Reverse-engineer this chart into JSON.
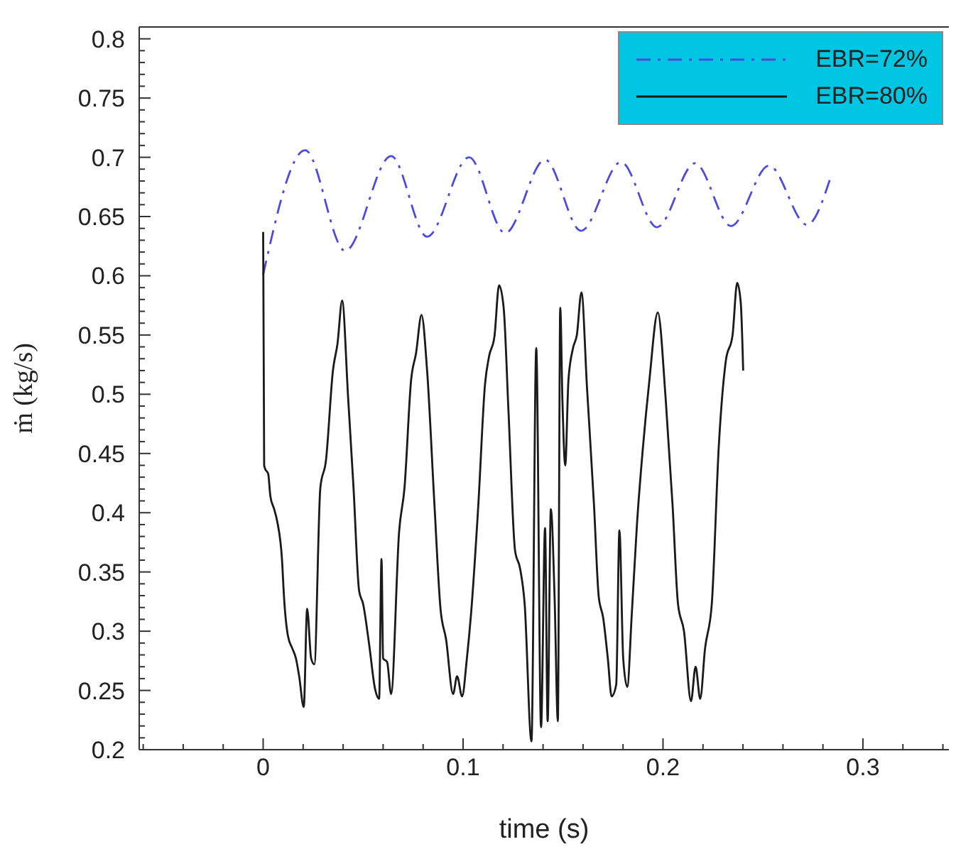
{
  "chart_data": {
    "type": "line",
    "xlabel": "time (s)",
    "ylabel": "ṁ (kg/s)",
    "legend": "top right",
    "grid": false,
    "marker": "none",
    "xlim": [
      -0.062,
      0.343
    ],
    "ylim": [
      0.2,
      0.81
    ],
    "xticks": [
      {
        "value": -0.06,
        "label": null
      },
      {
        "value": -0.04,
        "label": null
      },
      {
        "value": -0.02,
        "label": null
      },
      0,
      {
        "value": 0.02,
        "label": null
      },
      {
        "value": 0.04,
        "label": null
      },
      {
        "value": 0.06,
        "label": null
      },
      {
        "value": 0.08,
        "label": null
      },
      0.1,
      {
        "value": 0.12,
        "label": null
      },
      {
        "value": 0.14,
        "label": null
      },
      {
        "value": 0.16,
        "label": null
      },
      {
        "value": 0.18,
        "label": null
      },
      0.2,
      {
        "value": 0.22,
        "label": null
      },
      {
        "value": 0.24,
        "label": null
      },
      {
        "value": 0.26,
        "label": null
      },
      {
        "value": 0.28,
        "label": null
      },
      0.3,
      {
        "value": 0.32,
        "label": null
      },
      {
        "value": 0.34,
        "label": null
      }
    ],
    "yticks": [
      0.2,
      {
        "value": 0.21,
        "label": null
      },
      {
        "value": 0.22,
        "label": null
      },
      {
        "value": 0.23,
        "label": null
      },
      {
        "value": 0.24,
        "label": null
      },
      0.25,
      {
        "value": 0.26,
        "label": null
      },
      {
        "value": 0.27,
        "label": null
      },
      {
        "value": 0.28,
        "label": null
      },
      {
        "value": 0.29,
        "label": null
      },
      0.3,
      {
        "value": 0.31,
        "label": null
      },
      {
        "value": 0.32,
        "label": null
      },
      {
        "value": 0.33,
        "label": null
      },
      {
        "value": 0.34,
        "label": null
      },
      0.35,
      {
        "value": 0.36,
        "label": null
      },
      {
        "value": 0.37,
        "label": null
      },
      {
        "value": 0.38,
        "label": null
      },
      {
        "value": 0.39,
        "label": null
      },
      0.4,
      {
        "value": 0.41,
        "label": null
      },
      {
        "value": 0.42,
        "label": null
      },
      {
        "value": 0.43,
        "label": null
      },
      {
        "value": 0.44,
        "label": null
      },
      0.45,
      {
        "value": 0.46,
        "label": null
      },
      {
        "value": 0.47,
        "label": null
      },
      {
        "value": 0.48,
        "label": null
      },
      {
        "value": 0.49,
        "label": null
      },
      0.5,
      {
        "value": 0.51,
        "label": null
      },
      {
        "value": 0.52,
        "label": null
      },
      {
        "value": 0.53,
        "label": null
      },
      {
        "value": 0.54,
        "label": null
      },
      0.55,
      {
        "value": 0.56,
        "label": null
      },
      {
        "value": 0.57,
        "label": null
      },
      {
        "value": 0.58,
        "label": null
      },
      {
        "value": 0.59,
        "label": null
      },
      0.6,
      {
        "value": 0.61,
        "label": null
      },
      {
        "value": 0.62,
        "label": null
      },
      {
        "value": 0.63,
        "label": null
      },
      {
        "value": 0.64,
        "label": null
      },
      0.65,
      {
        "value": 0.66,
        "label": null
      },
      {
        "value": 0.67,
        "label": null
      },
      {
        "value": 0.68,
        "label": null
      },
      {
        "value": 0.69,
        "label": null
      },
      0.7,
      {
        "value": 0.71,
        "label": null
      },
      {
        "value": 0.72,
        "label": null
      },
      {
        "value": 0.73,
        "label": null
      },
      {
        "value": 0.74,
        "label": null
      },
      0.75,
      {
        "value": 0.76,
        "label": null
      },
      {
        "value": 0.77,
        "label": null
      },
      {
        "value": 0.78,
        "label": null
      },
      {
        "value": 0.79,
        "label": null
      },
      0.8
    ],
    "series": [
      {
        "name": "EBR=72%",
        "color": "#4b4be0",
        "line_style": "dashed",
        "x": [
          0,
          0.021,
          0.041,
          0.064,
          0.082,
          0.103,
          0.121,
          0.141,
          0.159,
          0.179,
          0.197,
          0.216,
          0.234,
          0.253,
          0.272,
          0.284
        ],
        "values": [
          0.601,
          0.706,
          0.621,
          0.701,
          0.633,
          0.7,
          0.636,
          0.698,
          0.638,
          0.696,
          0.641,
          0.695,
          0.642,
          0.693,
          0.643,
          0.684
        ]
      },
      {
        "name": "EBR=80%",
        "color": "#1a1a1a",
        "line_style": "solid",
        "x": [
          0,
          0.0005,
          0.001,
          0.0025,
          0.0036,
          0.0055,
          0.007,
          0.0094,
          0.0105,
          0.0124,
          0.0147,
          0.0164,
          0.018,
          0.0203,
          0.022,
          0.024,
          0.0256,
          0.0286,
          0.0314,
          0.0349,
          0.0372,
          0.0395,
          0.0425,
          0.0452,
          0.048,
          0.05,
          0.053,
          0.056,
          0.058,
          0.0592,
          0.06,
          0.062,
          0.064,
          0.068,
          0.0707,
          0.074,
          0.0765,
          0.0792,
          0.082,
          0.0857,
          0.0887,
          0.0915,
          0.095,
          0.097,
          0.0995,
          0.1019,
          0.104,
          0.1076,
          0.111,
          0.113,
          0.1157,
          0.118,
          0.1203,
          0.1227,
          0.126,
          0.1285,
          0.1308,
          0.1342,
          0.1366,
          0.139,
          0.141,
          0.1423,
          0.1439,
          0.1458,
          0.1474,
          0.1486,
          0.1497,
          0.1511,
          0.1527,
          0.155,
          0.1569,
          0.1592,
          0.162,
          0.1655,
          0.1678,
          0.1701,
          0.1724,
          0.1743,
          0.1766,
          0.1782,
          0.1801,
          0.1821,
          0.1844,
          0.187,
          0.1898,
          0.1932,
          0.1974,
          0.2013,
          0.2048,
          0.2075,
          0.2105,
          0.214,
          0.2163,
          0.2186,
          0.221,
          0.2244,
          0.2279,
          0.2314,
          0.2348,
          0.2371,
          0.2389,
          0.2401
        ],
        "values": [
          0.637,
          0.44,
          0.437,
          0.433,
          0.414,
          0.403,
          0.393,
          0.361,
          0.327,
          0.296,
          0.285,
          0.277,
          0.262,
          0.236,
          0.319,
          0.277,
          0.272,
          0.421,
          0.444,
          0.52,
          0.543,
          0.579,
          0.497,
          0.421,
          0.334,
          0.323,
          0.289,
          0.251,
          0.243,
          0.361,
          0.277,
          0.274,
          0.247,
          0.384,
          0.421,
          0.512,
          0.535,
          0.567,
          0.52,
          0.406,
          0.319,
          0.293,
          0.247,
          0.262,
          0.245,
          0.277,
          0.315,
          0.406,
          0.509,
          0.532,
          0.549,
          0.592,
          0.573,
          0.486,
          0.368,
          0.353,
          0.323,
          0.207,
          0.539,
          0.219,
          0.387,
          0.224,
          0.403,
          0.327,
          0.224,
          0.573,
          0.494,
          0.44,
          0.512,
          0.539,
          0.55,
          0.586,
          0.505,
          0.406,
          0.33,
          0.311,
          0.277,
          0.245,
          0.255,
          0.385,
          0.277,
          0.253,
          0.315,
          0.391,
          0.452,
          0.512,
          0.569,
          0.497,
          0.406,
          0.323,
          0.3,
          0.241,
          0.27,
          0.243,
          0.285,
          0.323,
          0.456,
          0.528,
          0.55,
          0.594,
          0.577,
          0.52
        ]
      }
    ]
  }
}
